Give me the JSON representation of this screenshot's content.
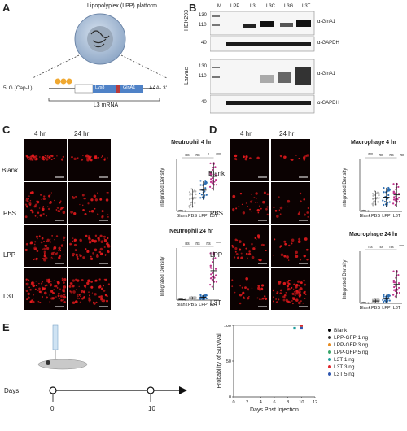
{
  "panelA": {
    "label": "A",
    "title": "Lipopolyplex (LPP) platform",
    "five_prime": "5' G (Cap-1)",
    "lys": "Lys8",
    "glna": "GlnA1",
    "three_prime": "AAA- 3'",
    "mrna": "L3 mRNA"
  },
  "panelB": {
    "label": "B",
    "lanes": [
      "M",
      "LPP",
      "L3",
      "L3C",
      "L3G",
      "L3T"
    ],
    "hek_label": "HEK293",
    "larvae_label": "Larvae",
    "mw_top": [
      "130",
      "110"
    ],
    "mw_gapdh": "40",
    "ab_glna": "α-GlnA1",
    "ab_gapdh": "α-GAPDH"
  },
  "panelC": {
    "label": "C",
    "time1": "4 hr",
    "time2": "24 hr",
    "rows": [
      "Blank",
      "PBS",
      "LPP",
      "L3T"
    ],
    "chart_top_title": "Neutrophil 4 hr",
    "chart_bottom_title": "Neutrophil 24 hr",
    "ylabel_top": "Integrated Density",
    "ylabel_bottom": "Integrated Density",
    "sig_top": [
      "ns",
      "ns",
      "*",
      "****"
    ],
    "sig_bottom": [
      "ns",
      "ns",
      "ns",
      "****"
    ]
  },
  "panelD": {
    "label": "D",
    "time1": "4 hr",
    "time2": "24 hr",
    "rows": [
      "Blank",
      "PBS",
      "LPP",
      "L3T"
    ],
    "chart_top_title": "Macrophage 4 hr",
    "chart_bottom_title": "Macrophage 24 hr",
    "ylabel_top": "Integrated Density",
    "ylabel_bottom": "Integrated Density",
    "sig_top": [
      "***",
      "ns",
      "ns",
      "ns"
    ],
    "sig_bottom": [
      "ns",
      "ns",
      "ns",
      "****"
    ]
  },
  "panelE": {
    "label": "E",
    "days_label": "Days",
    "day_start": "0",
    "day_end": "10"
  },
  "colors": {
    "blank": "#7a7a7a",
    "pbs": "#b7b7b7",
    "lpp": "#2e6fb3",
    "l3t": "#c0348e",
    "micro_red": "#e0191c"
  },
  "chart_data": [
    {
      "type": "scatter",
      "title": "Neutrophil 4 hr",
      "ylabel": "Integrated Density",
      "categories": [
        "Blank",
        "PBS",
        "LPP",
        "L3T"
      ],
      "means": [
        1,
        28,
        45,
        74
      ],
      "sd": [
        1,
        20,
        20,
        30
      ],
      "ylim": [
        0,
        110
      ]
    },
    {
      "type": "scatter",
      "title": "Neutrophil 24 hr",
      "ylabel": "Integrated Density",
      "categories": [
        "Blank",
        "PBS",
        "LPP",
        "L3T"
      ],
      "means": [
        1,
        4,
        6,
        62
      ],
      "sd": [
        1,
        3,
        5,
        40
      ],
      "ylim": [
        0,
        110
      ]
    },
    {
      "type": "scatter",
      "title": "Macrophage 4 hr",
      "ylabel": "Integrated Density",
      "categories": [
        "Blank",
        "PBS",
        "LPP",
        "L3T"
      ],
      "means": [
        1,
        28,
        30,
        35
      ],
      "sd": [
        1,
        15,
        20,
        25
      ],
      "ylim": [
        0,
        110
      ]
    },
    {
      "type": "scatter",
      "title": "Macrophage 24 hr",
      "ylabel": "Integrated Density",
      "categories": [
        "Blank",
        "PBS",
        "LPP",
        "L3T"
      ],
      "means": [
        1,
        5,
        10,
        40
      ],
      "sd": [
        1,
        4,
        8,
        30
      ],
      "ylim": [
        0,
        110
      ]
    },
    {
      "type": "line",
      "title": "",
      "xlabel": "Days Post Injection",
      "ylabel": "Probability of Survival",
      "x_ticks": [
        "0",
        "2",
        "4",
        "6",
        "8",
        "10",
        "12"
      ],
      "y_ticks": [
        "0",
        "50",
        "100"
      ],
      "xlim": [
        0,
        12
      ],
      "ylim": [
        0,
        100
      ],
      "series": [
        {
          "name": "Blank",
          "color": "#000000",
          "x": [
            0,
            10
          ],
          "y": [
            100,
            100
          ]
        },
        {
          "name": "LPP-GFP 1 ng",
          "color": "#333333",
          "x": [
            0,
            10
          ],
          "y": [
            100,
            100
          ]
        },
        {
          "name": "LPP-GFP 3 ng",
          "color": "#e68a1f",
          "x": [
            0,
            10
          ],
          "y": [
            100,
            100
          ]
        },
        {
          "name": "LPP-GFP 5 ng",
          "color": "#3aa66a",
          "x": [
            0,
            10
          ],
          "y": [
            100,
            100
          ]
        },
        {
          "name": "L3T 1 ng",
          "color": "#1c9c9c",
          "x": [
            0,
            9
          ],
          "y": [
            100,
            96
          ]
        },
        {
          "name": "L3T 3 ng",
          "color": "#e0252b",
          "x": [
            0,
            10
          ],
          "y": [
            100,
            100
          ]
        },
        {
          "name": "L3T 5 ng",
          "color": "#2f56b0",
          "x": [
            0,
            10
          ],
          "y": [
            100,
            96
          ]
        }
      ]
    }
  ]
}
